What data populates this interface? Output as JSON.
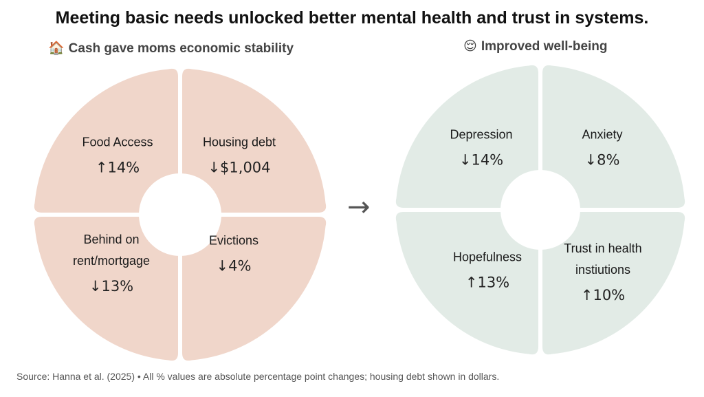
{
  "title": "Meeting basic needs unlocked better mental health and trust in systems.",
  "left_panel": {
    "emoji": "🏠",
    "heading": "Cash gave moms economic stability",
    "color": "#f0d6ca",
    "cells": [
      {
        "label_lines": [
          "Food Access"
        ],
        "value": "↑14%"
      },
      {
        "label_lines": [
          "Housing debt"
        ],
        "value": "↓$1,004"
      },
      {
        "label_lines": [
          "Behind on",
          "rent/mortgage"
        ],
        "value": "↓13%"
      },
      {
        "label_lines": [
          "Evictions"
        ],
        "value": "↓4%"
      }
    ]
  },
  "arrow": "→",
  "right_panel": {
    "emoji": "😌",
    "heading": "Improved well-being",
    "color": "#e2ebe6",
    "cells": [
      {
        "label_lines": [
          "Depression"
        ],
        "value": "↓14%"
      },
      {
        "label_lines": [
          "Anxiety"
        ],
        "value": "↓8%"
      },
      {
        "label_lines": [
          "Hopefulness"
        ],
        "value": "↑13%"
      },
      {
        "label_lines": [
          "Trust in health",
          "instiutions"
        ],
        "value": "↑10%"
      }
    ]
  },
  "source": "Source: Hanna et al. (2025) • All % values are absolute percentage point changes; housing debt shown in dollars."
}
